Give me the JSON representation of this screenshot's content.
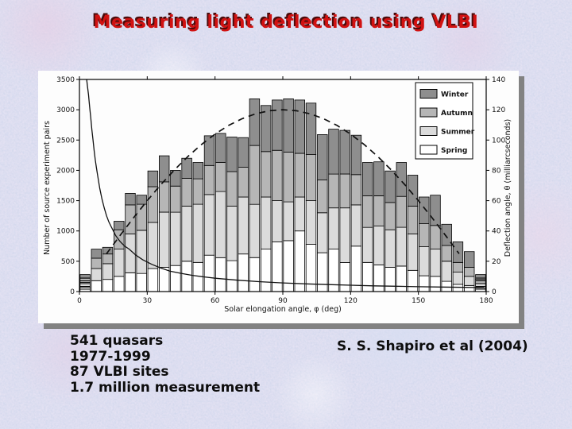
{
  "slide": {
    "title": "Measuring light deflection using VLBI",
    "facts": [
      "541 quasars",
      "1977-1999",
      "87 VLBI sites",
      "1.7 million measurement"
    ],
    "attribution": "S. S. Shapiro et al (2004)",
    "colors": {
      "background": "#c7d2e9",
      "title_red": "#d11212",
      "title_shadow": "#4a0c0c",
      "panel": "#fdfdfd",
      "panel_shadow": "#828282",
      "text": "#0d0d0d"
    }
  },
  "chart_data": {
    "type": "bar",
    "stacked": true,
    "title": "",
    "xlabel": "Solar elongation angle, φ (deg)",
    "ylabel_left": "Number of source experiment pairs",
    "ylabel_right": "Deflection angle, θ (milliarcseconds)",
    "xlim": [
      0,
      180
    ],
    "ylim_left": [
      0,
      3500
    ],
    "ylim_right": [
      0,
      140
    ],
    "xticks": [
      0,
      30,
      60,
      90,
      120,
      150,
      180
    ],
    "yticks_left": [
      0,
      500,
      1000,
      1500,
      2000,
      2500,
      3000,
      3500
    ],
    "yticks_right": [
      0,
      20,
      40,
      60,
      80,
      100,
      120,
      140
    ],
    "grid": false,
    "legend_position": "top-right-inside",
    "legend": [
      {
        "label": "Winter",
        "color": "#8e8e8e"
      },
      {
        "label": "Autumn",
        "color": "#b6b6b6"
      },
      {
        "label": "Summer",
        "color": "#dbdbdb"
      },
      {
        "label": "Spring",
        "color": "#ffffff"
      }
    ],
    "bin_width_deg": 5,
    "bin_starts": [
      0,
      5,
      10,
      15,
      20,
      25,
      30,
      35,
      40,
      45,
      50,
      55,
      60,
      65,
      70,
      75,
      80,
      85,
      90,
      95,
      100,
      105,
      110,
      115,
      120,
      125,
      130,
      135,
      140,
      145,
      150,
      155,
      160,
      165,
      170,
      175
    ],
    "striped_bins": [
      0,
      35
    ],
    "series": [
      {
        "name": "Spring",
        "color": "#ffffff",
        "values": [
          70,
          180,
          200,
          250,
          310,
          300,
          380,
          400,
          430,
          500,
          480,
          600,
          560,
          510,
          620,
          560,
          700,
          820,
          840,
          1000,
          780,
          640,
          700,
          480,
          750,
          480,
          440,
          400,
          420,
          350,
          260,
          250,
          170,
          120,
          100,
          60
        ]
      },
      {
        "name": "Summer",
        "color": "#dbdbdb",
        "values": [
          80,
          200,
          260,
          450,
          640,
          710,
          760,
          910,
          880,
          910,
          960,
          1000,
          1090,
          900,
          940,
          880,
          860,
          680,
          640,
          560,
          720,
          660,
          680,
          900,
          680,
          580,
          640,
          620,
          640,
          600,
          480,
          450,
          330,
          200,
          150,
          70
        ]
      },
      {
        "name": "Autumn",
        "color": "#b6b6b6",
        "values": [
          70,
          170,
          160,
          320,
          480,
          430,
          590,
          500,
          430,
          460,
          420,
          480,
          480,
          570,
          490,
          970,
          750,
          830,
          820,
          720,
          760,
          540,
          560,
          560,
          500,
          520,
          500,
          450,
          510,
          460,
          380,
          390,
          260,
          160,
          150,
          70
        ]
      },
      {
        "name": "Winter",
        "color": "#8e8e8e",
        "values": [
          60,
          150,
          110,
          140,
          190,
          150,
          260,
          430,
          260,
          330,
          270,
          490,
          480,
          570,
          490,
          770,
          760,
          830,
          880,
          880,
          850,
          750,
          740,
          720,
          650,
          550,
          560,
          520,
          560,
          510,
          440,
          500,
          350,
          340,
          260,
          80
        ]
      }
    ],
    "curves": {
      "deflection_solid": {
        "style": "solid",
        "axis": "right",
        "units": "milliarcseconds",
        "points": [
          [
            3.2,
            140
          ],
          [
            3.6,
            135
          ],
          [
            4,
            130
          ],
          [
            4.5,
            122
          ],
          [
            5,
            115
          ],
          [
            5.5,
            107
          ],
          [
            6,
            100
          ],
          [
            6.5,
            93
          ],
          [
            7,
            87
          ],
          [
            7.5,
            82
          ],
          [
            8,
            77
          ],
          [
            9,
            68
          ],
          [
            10,
            61
          ],
          [
            11,
            55
          ],
          [
            12,
            50
          ],
          [
            13,
            46
          ],
          [
            14,
            43
          ],
          [
            15,
            40
          ],
          [
            16,
            37
          ],
          [
            18,
            33
          ],
          [
            20,
            30
          ],
          [
            22,
            28
          ],
          [
            25,
            24
          ],
          [
            28,
            21
          ],
          [
            32,
            18
          ],
          [
            36,
            15.5
          ],
          [
            40,
            13.5
          ],
          [
            45,
            12
          ],
          [
            50,
            10.7
          ],
          [
            55,
            9.7
          ],
          [
            60,
            8.8
          ],
          [
            70,
            7.5
          ],
          [
            80,
            6.5
          ],
          [
            90,
            5.7
          ],
          [
            100,
            5.1
          ],
          [
            110,
            4.6
          ],
          [
            120,
            4.2
          ],
          [
            130,
            3.8
          ],
          [
            140,
            3.5
          ],
          [
            150,
            3.2
          ],
          [
            160,
            3.0
          ],
          [
            170,
            2.8
          ],
          [
            179,
            2.6
          ]
        ]
      },
      "expected_distribution_dashed": {
        "style": "dashed",
        "axis": "left",
        "units": "source experiment pairs",
        "points": [
          [
            12,
            624
          ],
          [
            18,
            927
          ],
          [
            24,
            1220
          ],
          [
            30,
            1500
          ],
          [
            36,
            1763
          ],
          [
            42,
            2007
          ],
          [
            48,
            2229
          ],
          [
            54,
            2427
          ],
          [
            60,
            2598
          ],
          [
            66,
            2741
          ],
          [
            72,
            2853
          ],
          [
            78,
            2934
          ],
          [
            84,
            2984
          ],
          [
            90,
            3000
          ],
          [
            96,
            2984
          ],
          [
            102,
            2934
          ],
          [
            108,
            2853
          ],
          [
            114,
            2741
          ],
          [
            120,
            2598
          ],
          [
            126,
            2427
          ],
          [
            132,
            2229
          ],
          [
            138,
            2007
          ],
          [
            144,
            1763
          ],
          [
            150,
            1500
          ],
          [
            156,
            1220
          ],
          [
            162,
            927
          ],
          [
            168,
            624
          ]
        ]
      }
    }
  }
}
